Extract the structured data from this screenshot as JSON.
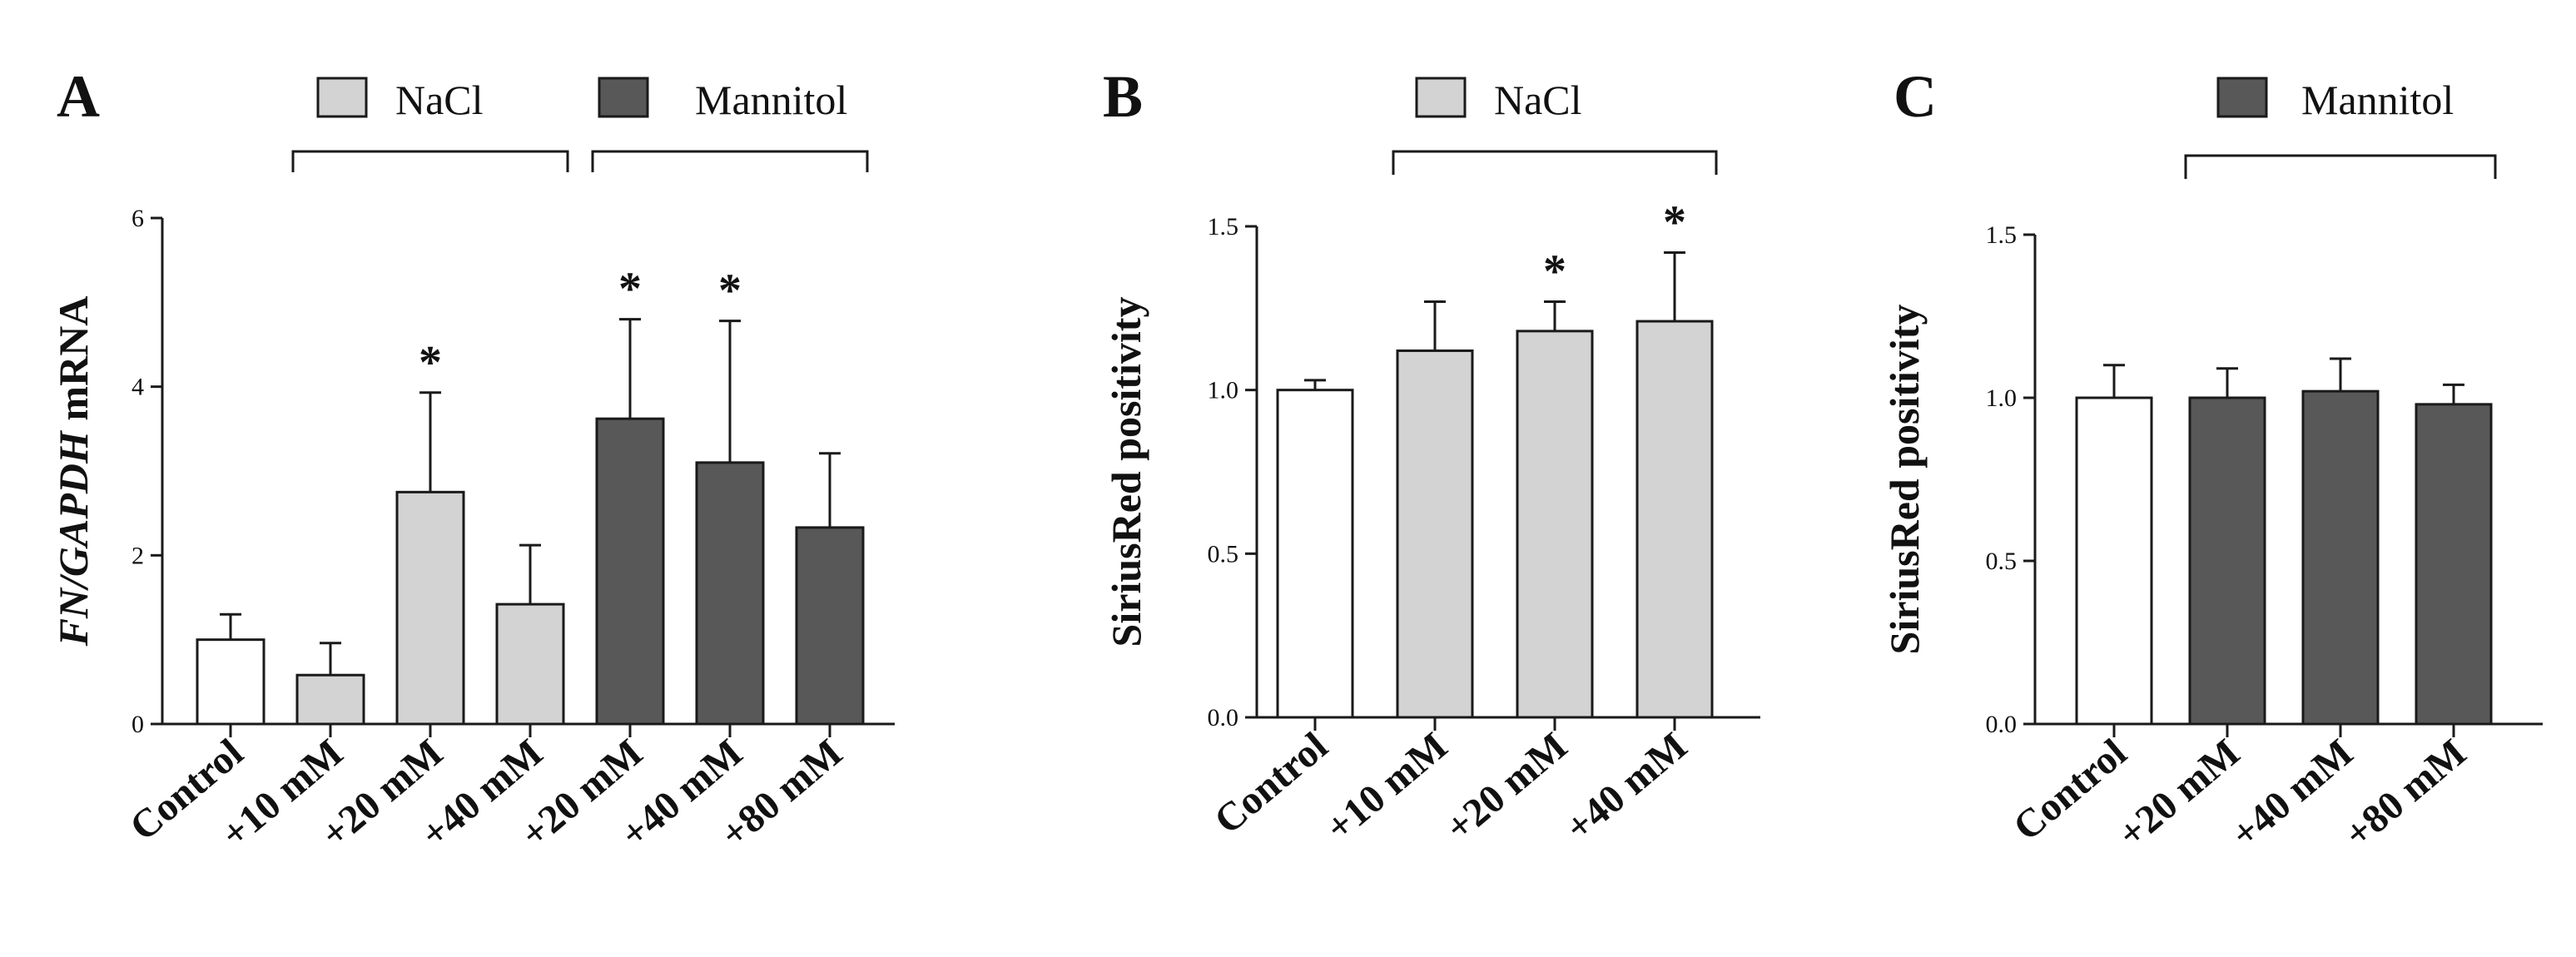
{
  "figure": {
    "panels": [
      {
        "id": "A",
        "letter": "A"
      },
      {
        "id": "B",
        "letter": "B"
      },
      {
        "id": "C",
        "letter": "C"
      }
    ]
  },
  "colors": {
    "control": "#ffffff",
    "nacl": "#d3d3d3",
    "mannitol": "#585858",
    "stroke": "#1a1a1a"
  },
  "chart_data": [
    {
      "panel": "A",
      "type": "bar",
      "title": "",
      "ylabel_italic": "FN/GAPDH",
      "ylabel_rest": " mRNA",
      "ylim": [
        0,
        6
      ],
      "yticks": [
        0,
        2,
        4,
        6
      ],
      "ytick_labels": [
        "0",
        "2",
        "4",
        "6"
      ],
      "categories": [
        "Control",
        "+10 mM",
        "+20 mM",
        "+40 mM",
        "+20 mM",
        "+40 mM",
        "+80 mM"
      ],
      "values": [
        1.0,
        0.58,
        2.75,
        1.42,
        3.62,
        3.1,
        2.33
      ],
      "errors": [
        0.3,
        0.38,
        1.18,
        0.7,
        1.18,
        1.68,
        0.88
      ],
      "groups": [
        "control",
        "nacl",
        "nacl",
        "nacl",
        "mannitol",
        "mannitol",
        "mannitol"
      ],
      "significance": [
        "",
        "",
        "*",
        "",
        "*",
        "*",
        ""
      ],
      "legend": [
        {
          "label": "NaCl",
          "group": "nacl",
          "span": [
            1,
            3
          ]
        },
        {
          "label": "Mannitol",
          "group": "mannitol",
          "span": [
            4,
            6
          ]
        }
      ]
    },
    {
      "panel": "B",
      "type": "bar",
      "title": "",
      "ylabel": "SiriusRed positivity",
      "ylim": [
        0,
        1.5
      ],
      "yticks": [
        0,
        0.5,
        1.0,
        1.5
      ],
      "ytick_labels": [
        "0.0",
        "0.5",
        "1.0",
        "1.5"
      ],
      "categories": [
        "Control",
        "+10 mM",
        "+20 mM",
        "+40 mM"
      ],
      "values": [
        1.0,
        1.12,
        1.18,
        1.21
      ],
      "errors": [
        0.03,
        0.15,
        0.09,
        0.21
      ],
      "groups": [
        "control",
        "nacl",
        "nacl",
        "nacl"
      ],
      "significance": [
        "",
        "",
        "*",
        "*"
      ],
      "legend": [
        {
          "label": "NaCl",
          "group": "nacl",
          "span": [
            1,
            3
          ]
        }
      ]
    },
    {
      "panel": "C",
      "type": "bar",
      "title": "",
      "ylabel": "SiriusRed positivity",
      "ylim": [
        0,
        1.5
      ],
      "yticks": [
        0,
        0.5,
        1.0,
        1.5
      ],
      "ytick_labels": [
        "0.0",
        "0.5",
        "1.0",
        "1.5"
      ],
      "categories": [
        "Control",
        "+20 mM",
        "+40 mM",
        "+80 mM"
      ],
      "values": [
        1.0,
        1.0,
        1.02,
        0.98
      ],
      "errors": [
        0.1,
        0.09,
        0.1,
        0.06
      ],
      "groups": [
        "control",
        "mannitol",
        "mannitol",
        "mannitol"
      ],
      "significance": [
        "",
        "",
        "",
        ""
      ],
      "legend": [
        {
          "label": "Mannitol",
          "group": "mannitol",
          "span": [
            1,
            3
          ]
        }
      ]
    }
  ]
}
